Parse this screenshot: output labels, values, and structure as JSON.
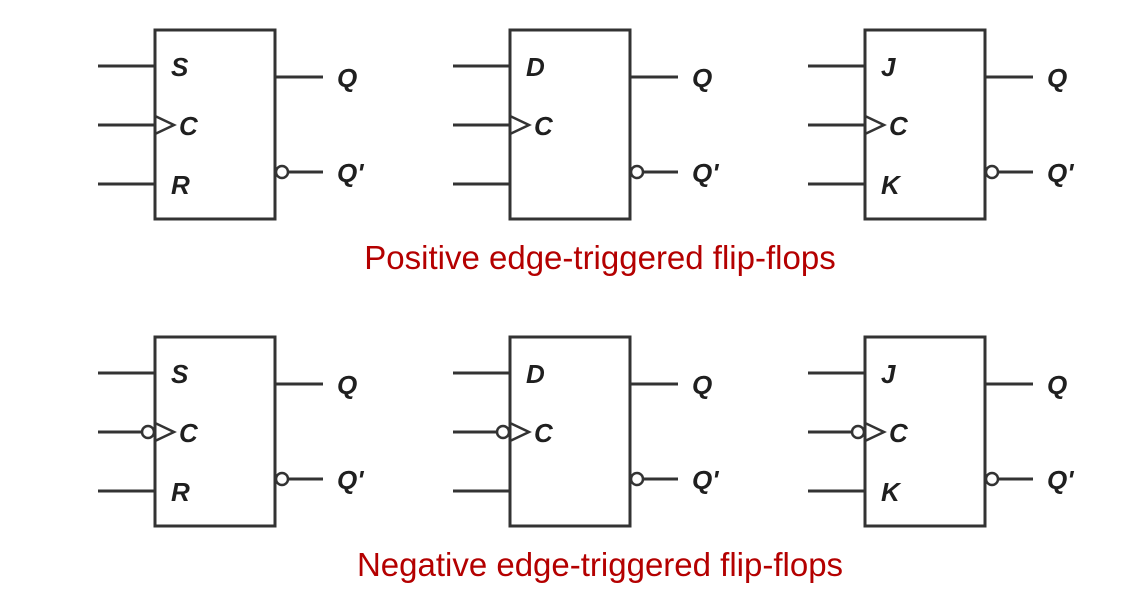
{
  "colors": {
    "caption": "#b40000",
    "line": "#333333",
    "label": "#1f1f1f"
  },
  "rows": [
    {
      "caption": "Positive edge-triggered flip-flops",
      "trigger": "positive",
      "flipflops": [
        {
          "id": "sr",
          "inputs": [
            {
              "label": "S"
            },
            {
              "label": "C",
              "clock": true
            },
            {
              "label": "R"
            }
          ],
          "outputs": [
            "Q",
            "Q'"
          ]
        },
        {
          "id": "d",
          "inputs": [
            {
              "label": "D"
            },
            {
              "label": "C",
              "clock": true
            },
            {
              "label": ""
            }
          ],
          "outputs": [
            "Q",
            "Q'"
          ]
        },
        {
          "id": "jk",
          "inputs": [
            {
              "label": "J"
            },
            {
              "label": "C",
              "clock": true
            },
            {
              "label": "K"
            }
          ],
          "outputs": [
            "Q",
            "Q'"
          ]
        }
      ]
    },
    {
      "caption": "Negative edge-triggered flip-flops",
      "trigger": "negative",
      "flipflops": [
        {
          "id": "sr",
          "inputs": [
            {
              "label": "S"
            },
            {
              "label": "C",
              "clock": true
            },
            {
              "label": "R"
            }
          ],
          "outputs": [
            "Q",
            "Q'"
          ]
        },
        {
          "id": "d",
          "inputs": [
            {
              "label": "D"
            },
            {
              "label": "C",
              "clock": true
            },
            {
              "label": ""
            }
          ],
          "outputs": [
            "Q",
            "Q'"
          ]
        },
        {
          "id": "jk",
          "inputs": [
            {
              "label": "J"
            },
            {
              "label": "C",
              "clock": true
            },
            {
              "label": "K"
            }
          ],
          "outputs": [
            "Q",
            "Q'"
          ]
        }
      ]
    }
  ]
}
